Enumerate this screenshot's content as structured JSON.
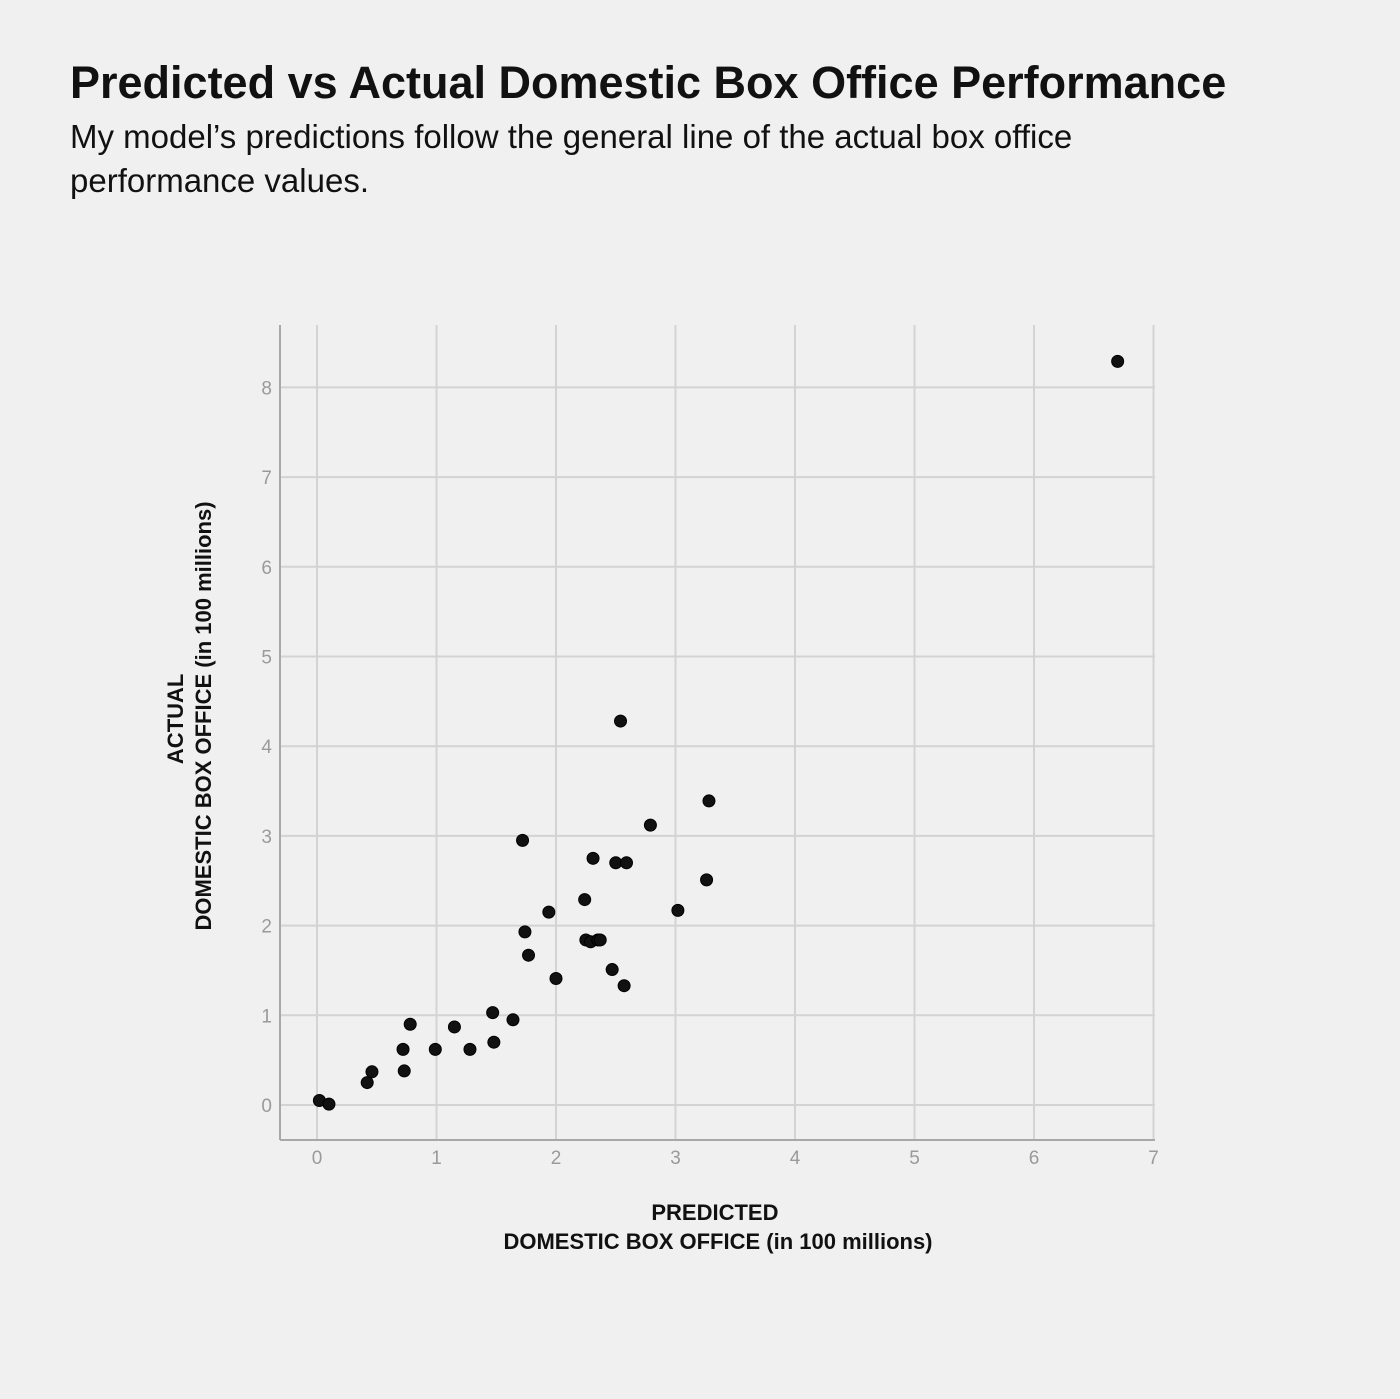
{
  "title": "Predicted vs Actual Domestic Box Office Performance",
  "subtitle": "My model’s predictions follow the general line of the actual box office performance values.",
  "colors": {
    "background": "#f0f0f0",
    "grid": "#d3d3d3",
    "point": "#111111",
    "tick_text": "#9a9a9a",
    "text": "#111111"
  },
  "chart_data": {
    "type": "scatter",
    "title": "Predicted vs Actual Domestic Box Office Performance",
    "subtitle": "My model’s predictions follow the general line of the actual box office performance values.",
    "xlabel_lines": [
      "PREDICTED",
      "DOMESTIC BOX OFFICE (in 100 millions)"
    ],
    "ylabel_lines": [
      "ACTUAL",
      "DOMESTIC BOX OFFICE (in 100 millions)"
    ],
    "xlim": [
      -0.3,
      7.0
    ],
    "ylim": [
      -0.4,
      8.7
    ],
    "xticks": [
      0,
      1,
      2,
      3,
      4,
      5,
      6,
      7
    ],
    "yticks": [
      0,
      1,
      2,
      3,
      4,
      5,
      6,
      7,
      8
    ],
    "grid": true,
    "legend": false,
    "points": [
      {
        "x": 0.02,
        "y": 0.05
      },
      {
        "x": 0.1,
        "y": 0.01
      },
      {
        "x": 0.42,
        "y": 0.25
      },
      {
        "x": 0.46,
        "y": 0.37
      },
      {
        "x": 0.72,
        "y": 0.62
      },
      {
        "x": 0.73,
        "y": 0.38
      },
      {
        "x": 0.78,
        "y": 0.9
      },
      {
        "x": 0.99,
        "y": 0.62
      },
      {
        "x": 1.15,
        "y": 0.87
      },
      {
        "x": 1.28,
        "y": 0.62
      },
      {
        "x": 1.47,
        "y": 1.03
      },
      {
        "x": 1.48,
        "y": 0.7
      },
      {
        "x": 1.64,
        "y": 0.95
      },
      {
        "x": 1.72,
        "y": 2.95
      },
      {
        "x": 1.74,
        "y": 1.93
      },
      {
        "x": 1.77,
        "y": 1.67
      },
      {
        "x": 1.94,
        "y": 2.15
      },
      {
        "x": 2.0,
        "y": 1.41
      },
      {
        "x": 2.24,
        "y": 2.29
      },
      {
        "x": 2.25,
        "y": 1.84
      },
      {
        "x": 2.29,
        "y": 1.82
      },
      {
        "x": 2.31,
        "y": 2.75
      },
      {
        "x": 2.35,
        "y": 1.84
      },
      {
        "x": 2.37,
        "y": 1.84
      },
      {
        "x": 2.47,
        "y": 1.51
      },
      {
        "x": 2.5,
        "y": 2.7
      },
      {
        "x": 2.54,
        "y": 4.28
      },
      {
        "x": 2.57,
        "y": 1.33
      },
      {
        "x": 2.59,
        "y": 2.7
      },
      {
        "x": 2.79,
        "y": 3.12
      },
      {
        "x": 3.02,
        "y": 2.17
      },
      {
        "x": 3.26,
        "y": 2.51
      },
      {
        "x": 3.28,
        "y": 3.39
      },
      {
        "x": 6.7,
        "y": 8.29
      }
    ]
  }
}
